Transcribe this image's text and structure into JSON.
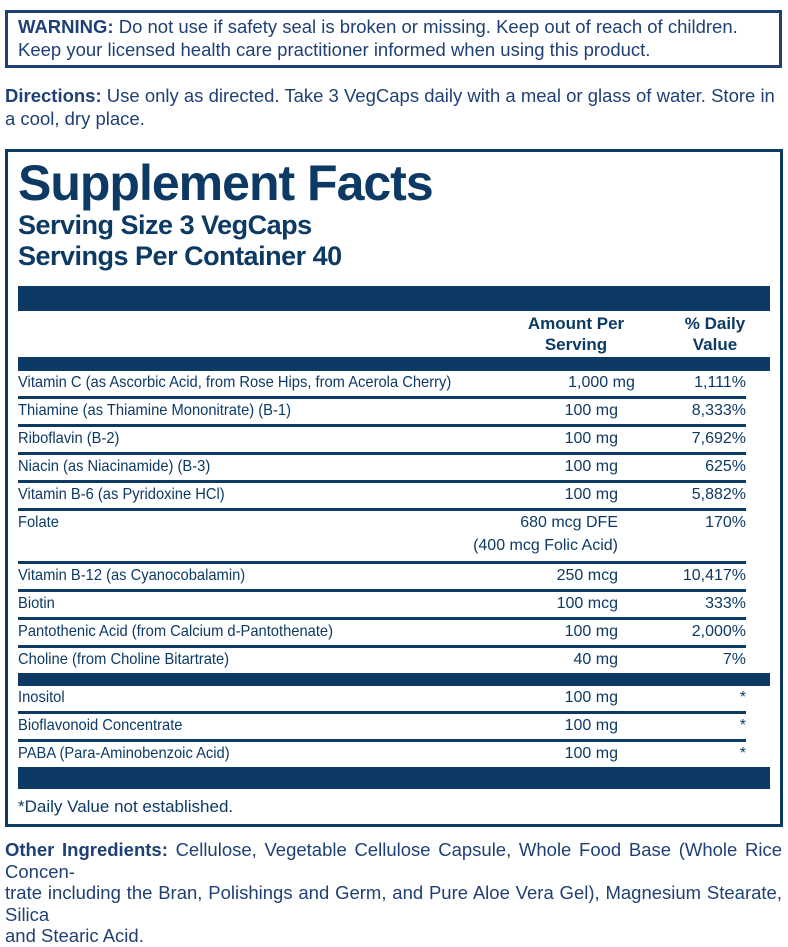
{
  "colors": {
    "top_text_navy": "#1e4075",
    "panel_navy": "#0d3a64",
    "background": "#ffffff"
  },
  "warning": {
    "label": "WARNING:",
    "text": " Do not use if safety seal is broken or missing. Keep out of reach of children. Keep your licensed health care practitioner informed when using this product."
  },
  "directions": {
    "label": "Directions:",
    "text": " Use only as directed. Take 3 VegCaps daily with a meal or glass of water. Store in a cool, dry place."
  },
  "panel": {
    "title": "Supplement Facts",
    "serving_size": "Serving Size 3 VegCaps",
    "servings_per_container": "Servings Per Container 40",
    "columns": {
      "amount": "Amount Per\nServing",
      "dv": "% Daily\nValue"
    },
    "rows": [
      {
        "name": "Vitamin C (as Ascorbic Acid, from Rose Hips, from Acerola Cherry)",
        "amount": "1,000 mg",
        "dv": "1,111%"
      },
      {
        "name": "Thiamine (as Thiamine Mononitrate) (B-1)",
        "amount": "100 mg",
        "dv": "8,333%"
      },
      {
        "name": "Riboflavin (B-2)",
        "amount": "100 mg",
        "dv": "7,692%"
      },
      {
        "name": "Niacin (as Niacinamide) (B-3)",
        "amount": "100 mg",
        "dv": "625%"
      },
      {
        "name": "Vitamin B-6 (as Pyridoxine HCl)",
        "amount": "100 mg",
        "dv": "5,882%"
      },
      {
        "name": "Folate",
        "amount": "680 mcg DFE",
        "amount_note": "(400 mcg Folic Acid)",
        "dv": "170%"
      },
      {
        "name": "Vitamin B-12 (as Cyanocobalamin)",
        "amount": "250 mcg",
        "dv": "10,417%"
      },
      {
        "name": "Biotin",
        "amount": "100 mcg",
        "dv": "333%"
      },
      {
        "name": "Pantothenic Acid (from Calcium d-Pantothenate)",
        "amount": "100 mg",
        "dv": "2,000%"
      },
      {
        "name": "Choline (from Choline Bitartrate)",
        "amount": "40 mg",
        "dv": "7%"
      },
      {
        "name": "Inositol",
        "amount": "100 mg",
        "dv": "*"
      },
      {
        "name": "Bioflavonoid Concentrate",
        "amount": "100 mg",
        "dv": "*"
      },
      {
        "name": "PABA (Para-Aminobenzoic Acid)",
        "amount": "100 mg",
        "dv": "*"
      }
    ],
    "footnote": "*Daily Value not established."
  },
  "other_ingredients": {
    "label": "Other Ingredients:",
    "line1_rest": " Cellulose, Vegetable Cellulose Capsule, Whole Food Base (Whole Rice Concen-",
    "line2": "trate including the Bran, Polishings and Germ, and Pure Aloe Vera Gel), Magnesium Stearate, Silica",
    "line3": "and Stearic Acid."
  }
}
